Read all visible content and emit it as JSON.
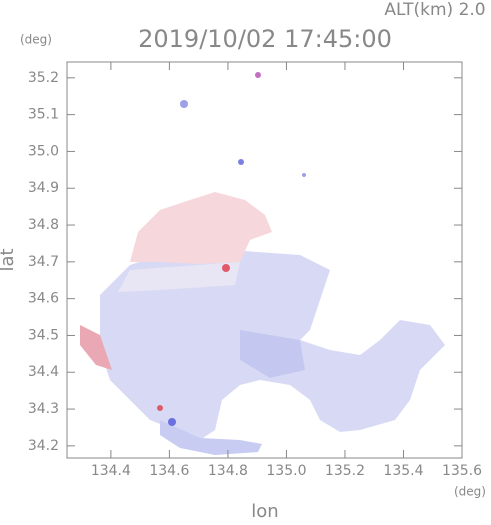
{
  "chart_data": {
    "type": "map",
    "title": "2019/10/02 17:45:00",
    "altitude_label": "ALT(km) 2.0",
    "y_unit": "(deg)",
    "x_unit": "(deg)",
    "x_label": "lon",
    "y_label": "lat",
    "xlim": [
      134.25,
      135.6
    ],
    "ylim": [
      34.167,
      35.243
    ],
    "xticks": [
      134.4,
      134.6,
      134.8,
      {
        "value": 135,
        "label": "135.0"
      },
      135.2,
      135.4,
      135.6
    ],
    "yticks": [
      34.2,
      34.3,
      34.4,
      34.5,
      34.6,
      34.7,
      34.8,
      34.9,
      {
        "value": 35,
        "label": "35.0"
      },
      35.1,
      35.2
    ]
  }
}
